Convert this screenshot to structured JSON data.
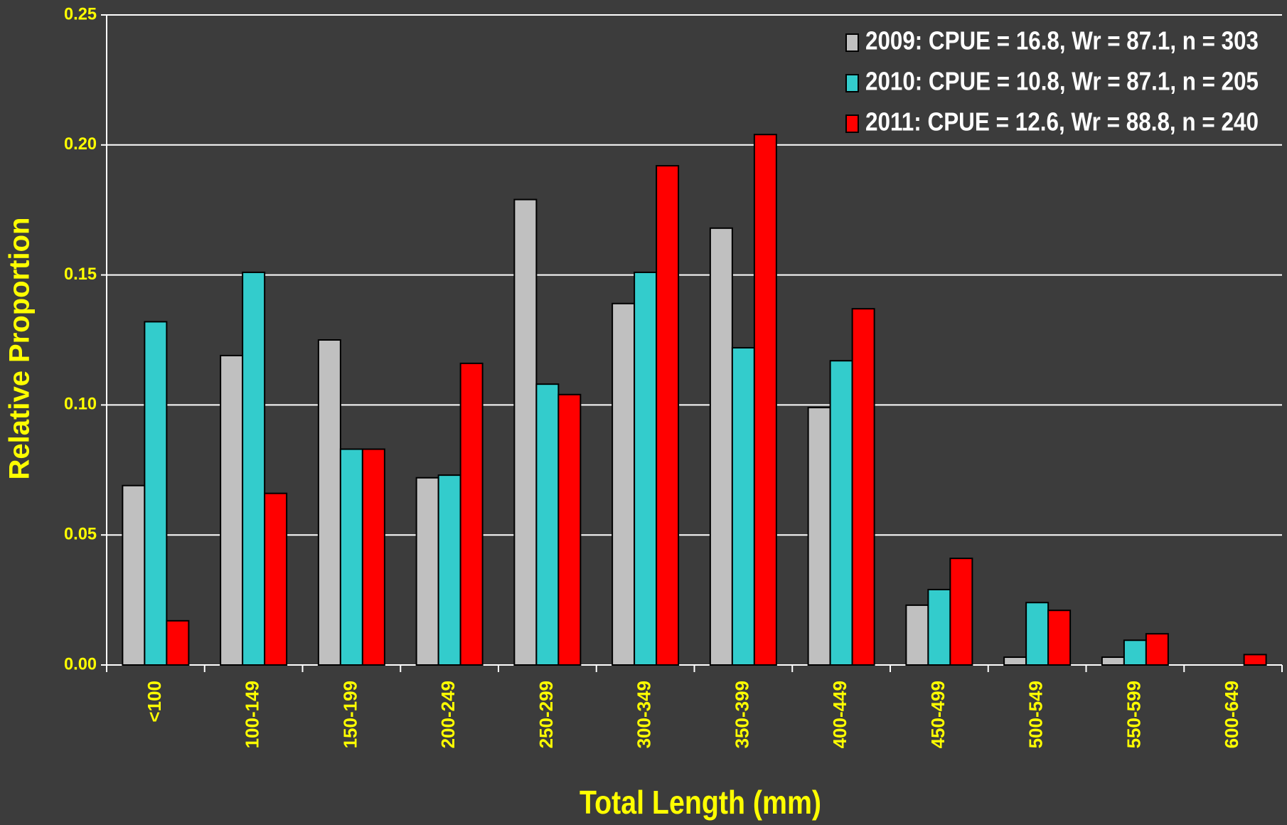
{
  "chart_data": {
    "type": "bar",
    "xlabel": "Total Length (mm)",
    "ylabel": "Relative Proportion",
    "categories": [
      "<100",
      "100-149",
      "150-199",
      "200-249",
      "250-299",
      "300-349",
      "350-399",
      "400-449",
      "450-499",
      "500-549",
      "550-599",
      "600-649"
    ],
    "series": [
      {
        "name": "2009:  CPUE = 16.8, Wr = 87.1, n = 303",
        "color": "#c0c0c0",
        "values": [
          0.069,
          0.119,
          0.125,
          0.072,
          0.179,
          0.139,
          0.168,
          0.099,
          0.023,
          0.003,
          0.003,
          0
        ]
      },
      {
        "name": "2010:  CPUE = 10.8, Wr = 87.1, n = 205",
        "color": "#33cccc",
        "values": [
          0.132,
          0.151,
          0.083,
          0.073,
          0.108,
          0.151,
          0.122,
          0.117,
          0.029,
          0.024,
          0.0095,
          0
        ]
      },
      {
        "name": "2011:  CPUE = 12.6, Wr = 88.8, n = 240",
        "color": "#ff0000",
        "values": [
          0.017,
          0.066,
          0.083,
          0.116,
          0.104,
          0.192,
          0.204,
          0.137,
          0.041,
          0.021,
          0.012,
          0.004
        ]
      }
    ],
    "ylim": [
      0,
      0.25
    ],
    "yticks": [
      {
        "value": 0,
        "label": "0.00"
      },
      {
        "value": 0.05,
        "label": "0.05"
      },
      {
        "value": 0.1,
        "label": "0.10"
      },
      {
        "value": 0.15,
        "label": "0.15"
      },
      {
        "value": 0.2,
        "label": "0.20"
      },
      {
        "value": 0.25,
        "label": "0.25"
      }
    ],
    "grid": true,
    "legend": "upper right"
  }
}
